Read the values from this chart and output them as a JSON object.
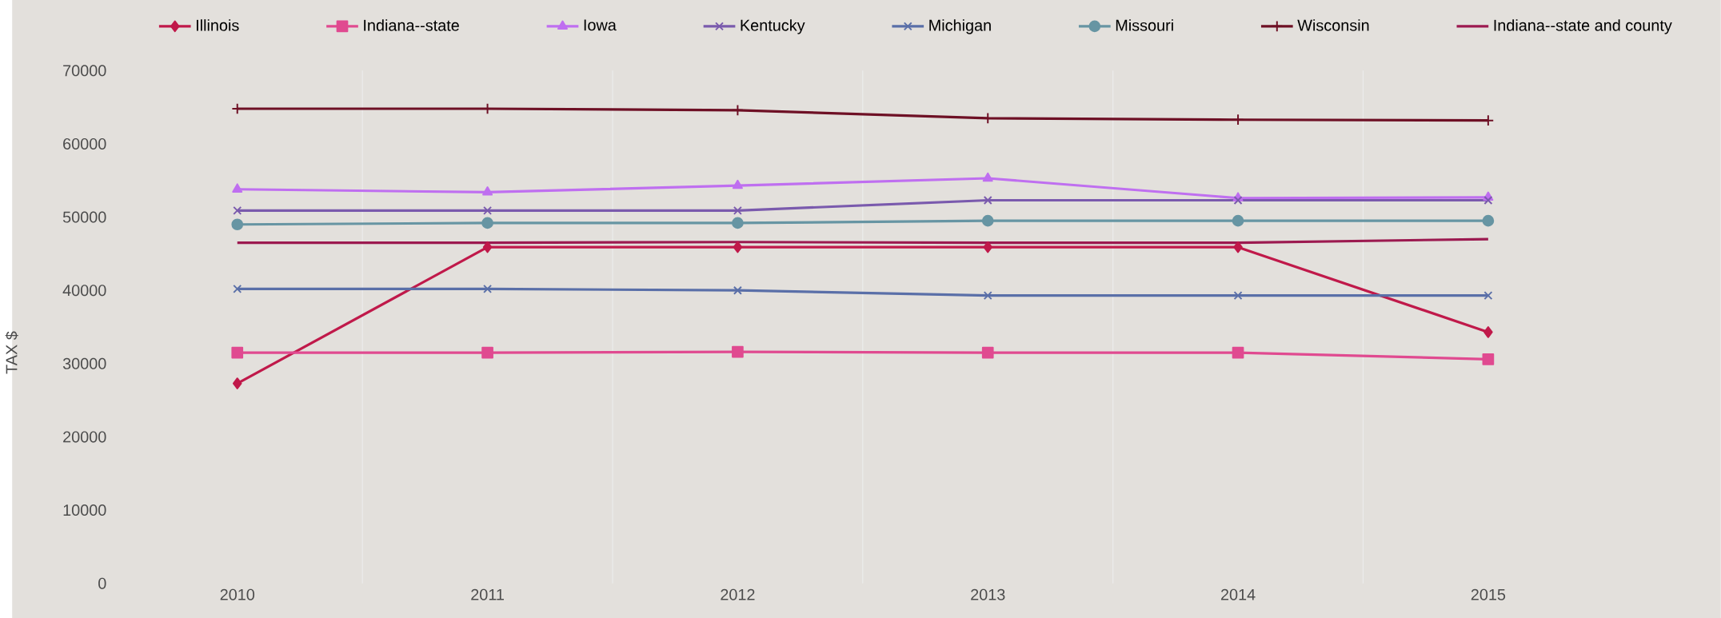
{
  "chart_data": {
    "type": "line",
    "ylabel": "TAX $",
    "categories": [
      "2010",
      "2011",
      "2012",
      "2013",
      "2014",
      "2015"
    ],
    "ylim": [
      0,
      70000
    ],
    "yticks": [
      0,
      10000,
      20000,
      30000,
      40000,
      50000,
      60000,
      70000
    ],
    "grid": "x",
    "legend": "top",
    "line_style": "solid",
    "series": [
      {
        "name": "Illinois",
        "color": "#c0194a",
        "marker": "diamond",
        "values": [
          27300,
          45900,
          45900,
          45900,
          45900,
          34300
        ]
      },
      {
        "name": "Indiana--state",
        "color": "#e04a90",
        "marker": "square",
        "values": [
          31500,
          31500,
          31600,
          31500,
          31500,
          30600
        ]
      },
      {
        "name": "Iowa",
        "color": "#bf6ff0",
        "marker": "triangle",
        "values": [
          53800,
          53400,
          54300,
          55300,
          52600,
          52700
        ]
      },
      {
        "name": "Kentucky",
        "color": "#7a5aad",
        "marker": "cross",
        "values": [
          50900,
          50900,
          50900,
          52300,
          52300,
          52300
        ]
      },
      {
        "name": "Michigan",
        "color": "#5a6fa8",
        "marker": "cross",
        "values": [
          40200,
          40200,
          40000,
          39300,
          39300,
          39300
        ]
      },
      {
        "name": "Missouri",
        "color": "#6795a3",
        "marker": "circle",
        "values": [
          49000,
          49200,
          49200,
          49500,
          49500,
          49500
        ]
      },
      {
        "name": "Wisconsin",
        "color": "#6e1025",
        "marker": "plus",
        "values": [
          64800,
          64800,
          64600,
          63500,
          63300,
          63200
        ]
      },
      {
        "name": "Indiana--state and county",
        "color": "#9c1a50",
        "marker": "none",
        "values": [
          46500,
          46500,
          46600,
          46500,
          46500,
          47000
        ]
      }
    ]
  }
}
